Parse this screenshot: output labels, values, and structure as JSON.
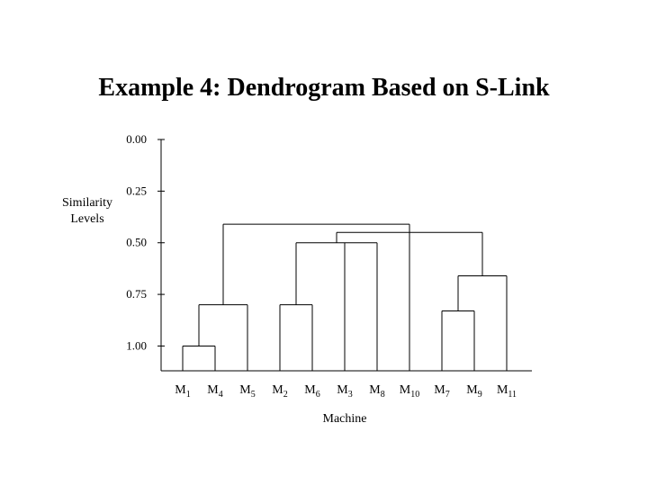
{
  "chart_data": {
    "type": "dendrogram",
    "title": "Example 4: Dendrogram Based on S-Link",
    "ylabel": [
      "Similarity",
      "Levels"
    ],
    "xlabel": "Machine",
    "ylim": [
      0,
      1.12
    ],
    "yticks": [
      {
        "value": 0,
        "label": "0.00"
      },
      {
        "value": 0.25,
        "label": "0.25"
      },
      {
        "value": 0.5,
        "label": "0.50"
      },
      {
        "value": 0.75,
        "label": "0.75"
      },
      {
        "value": 1,
        "label": "1.00"
      }
    ],
    "leaves": [
      {
        "base": "M",
        "sub": "1"
      },
      {
        "base": "M",
        "sub": "4"
      },
      {
        "base": "M",
        "sub": "5"
      },
      {
        "base": "M",
        "sub": "2"
      },
      {
        "base": "M",
        "sub": "6"
      },
      {
        "base": "M",
        "sub": "3"
      },
      {
        "base": "M",
        "sub": "8"
      },
      {
        "base": "M",
        "sub": "10"
      },
      {
        "base": "M",
        "sub": "7"
      },
      {
        "base": "M",
        "sub": "9"
      },
      {
        "base": "M",
        "sub": "11"
      }
    ],
    "merges": [
      {
        "children": [
          0,
          1
        ],
        "level": 1
      },
      {
        "children": [
          11,
          2
        ],
        "level": 0.8
      },
      {
        "children": [
          3,
          4
        ],
        "level": 0.8
      },
      {
        "children": [
          8,
          9
        ],
        "level": 0.83
      },
      {
        "children": [
          14,
          10
        ],
        "level": 0.66
      },
      {
        "children": [
          13,
          5,
          6
        ],
        "level": 0.5
      },
      {
        "children": [
          16,
          7,
          15
        ],
        "level": 0.45
      },
      {
        "children": [
          12,
          17
        ],
        "level": 0.41
      }
    ],
    "color": "#000000"
  }
}
